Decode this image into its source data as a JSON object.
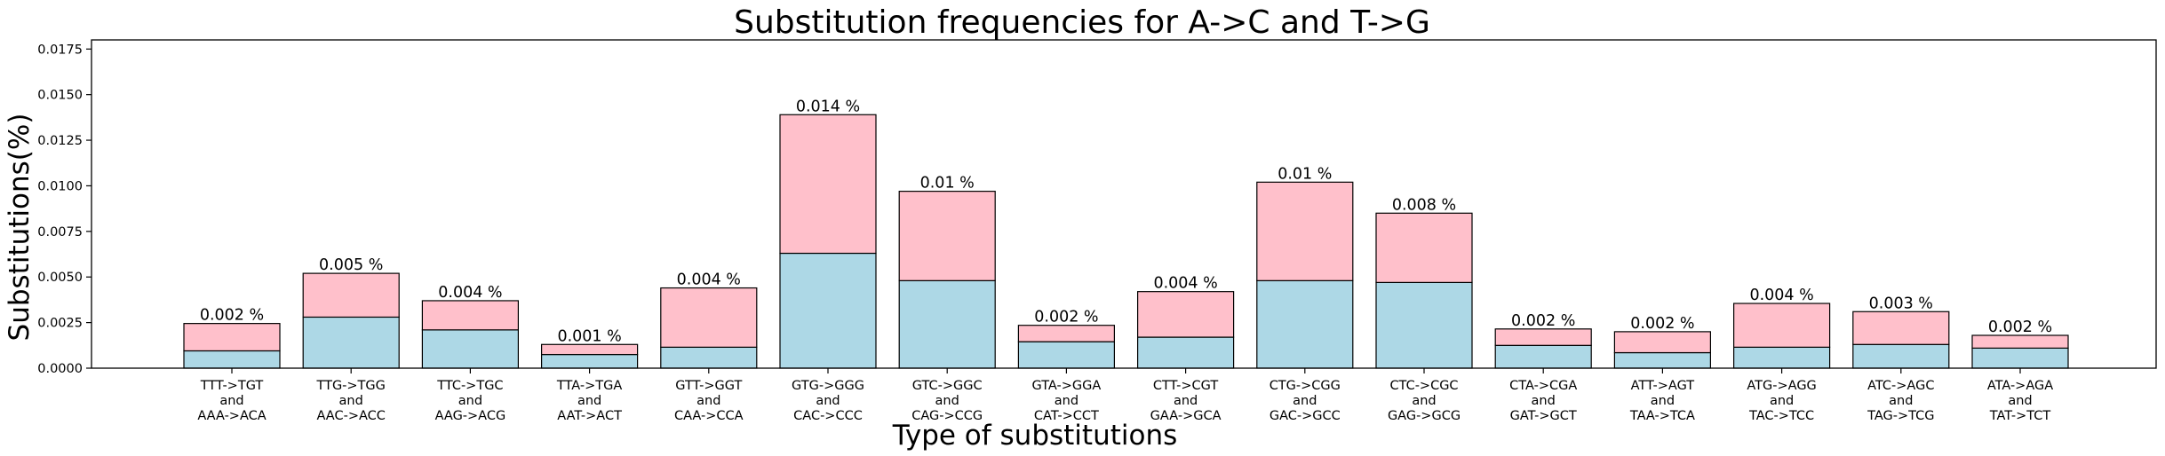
{
  "chart_data": {
    "type": "bar",
    "stacked": true,
    "title": "Substitution frequencies for A->C and T->G",
    "xlabel": "Type of substitutions",
    "ylabel": "Substitutions(%)",
    "ylim": [
      0,
      0.018
    ],
    "yticks": [
      "0.0000",
      "0.0025",
      "0.0050",
      "0.0075",
      "0.0100",
      "0.0125",
      "0.0150",
      "0.0175"
    ],
    "ytick_values": [
      0,
      0.0025,
      0.005,
      0.0075,
      0.01,
      0.0125,
      0.015,
      0.0175
    ],
    "grid": false,
    "categories": [
      [
        "TTT->TGT",
        "and",
        "AAA->ACA"
      ],
      [
        "TTG->TGG",
        "and",
        "AAC->ACC"
      ],
      [
        "TTC->TGC",
        "and",
        "AAG->ACG"
      ],
      [
        "TTA->TGA",
        "and",
        "AAT->ACT"
      ],
      [
        "GTT->GGT",
        "and",
        "CAA->CCA"
      ],
      [
        "GTG->GGG",
        "and",
        "CAC->CCC"
      ],
      [
        "GTC->GGC",
        "and",
        "CAG->CCG"
      ],
      [
        "GTA->GGA",
        "and",
        "CAT->CCT"
      ],
      [
        "CTT->CGT",
        "and",
        "GAA->GCA"
      ],
      [
        "CTG->CGG",
        "and",
        "GAC->GCC"
      ],
      [
        "CTC->CGC",
        "and",
        "GAG->GCG"
      ],
      [
        "CTA->CGA",
        "and",
        "GAT->GCT"
      ],
      [
        "ATT->AGT",
        "and",
        "TAA->TCA"
      ],
      [
        "ATG->AGG",
        "and",
        "TAC->TCC"
      ],
      [
        "ATC->AGC",
        "and",
        "TAG->TCG"
      ],
      [
        "ATA->AGA",
        "and",
        "TAT->TCT"
      ]
    ],
    "series": [
      {
        "color": "#add8e6",
        "values": [
          0.00095,
          0.0028,
          0.0021,
          0.00075,
          0.00115,
          0.0063,
          0.0048,
          0.00145,
          0.0017,
          0.0048,
          0.0047,
          0.00125,
          0.00085,
          0.00115,
          0.0013,
          0.0011
        ]
      },
      {
        "color": "#ffc0cb",
        "values": [
          0.0015,
          0.0024,
          0.0016,
          0.00055,
          0.00325,
          0.0076,
          0.0049,
          0.0009,
          0.0025,
          0.0054,
          0.0038,
          0.0009,
          0.00115,
          0.0024,
          0.0018,
          0.0007
        ]
      }
    ],
    "totals": [
      0.00245,
      0.0052,
      0.0037,
      0.0013,
      0.0044,
      0.0139,
      0.0097,
      0.00235,
      0.0042,
      0.0102,
      0.0085,
      0.00215,
      0.002,
      0.00355,
      0.0031,
      0.0018
    ],
    "data_labels": [
      "0.002 %",
      "0.005 %",
      "0.004 %",
      "0.001 %",
      "0.004 %",
      "0.014 %",
      "0.01 %",
      "0.002 %",
      "0.004 %",
      "0.01 %",
      "0.008 %",
      "0.002 %",
      "0.002 %",
      "0.004 %",
      "0.003 %",
      "0.002 %"
    ]
  }
}
